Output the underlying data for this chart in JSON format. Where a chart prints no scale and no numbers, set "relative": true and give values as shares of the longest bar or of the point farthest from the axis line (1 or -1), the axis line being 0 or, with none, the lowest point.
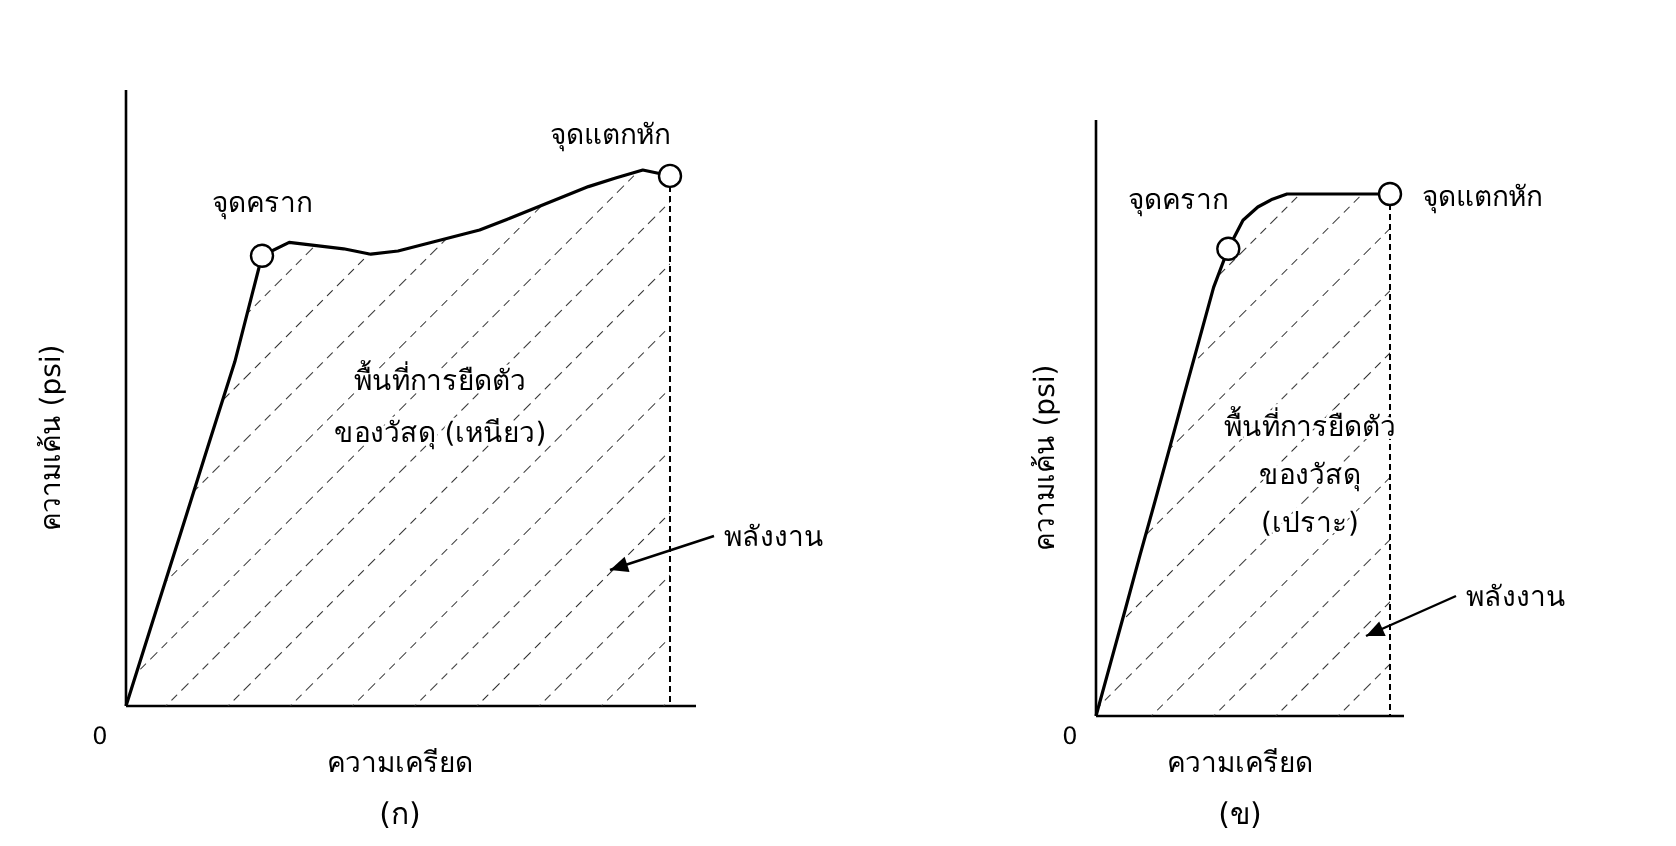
{
  "chart_data": [
    {
      "type": "area",
      "title": "(ก)",
      "xlabel": "ความเครียด",
      "ylabel": "ความเค้น (psi)",
      "relative": true,
      "marker": "none",
      "categories": [
        null,
        null,
        null,
        null,
        null,
        null,
        null,
        null,
        null,
        null,
        null,
        null,
        null,
        null,
        null,
        null,
        null,
        null,
        null,
        null,
        null
      ],
      "series": [
        {
          "color": "#000000",
          "values": [
            0,
            0.161,
            0.321,
            0.482,
            0.642,
            0.84,
            0.865,
            0.859,
            0.853,
            0.843,
            0.849,
            0.862,
            0.875,
            0.888,
            0.908,
            0.928,
            0.949,
            0.969,
            0.985,
            1,
            0.989
          ]
        }
      ],
      "annotations": [
        "จุดคราก",
        "จุดแตกหัก",
        "0",
        "พื้นที่การยืดตัว\nของวัสดุ (เหนียว)",
        "พลังงาน"
      ]
    },
    {
      "type": "area",
      "title": "(ข)",
      "xlabel": "ความเครียด",
      "ylabel": "ความเค้น (psi)",
      "relative": true,
      "marker": "none",
      "categories": [
        null,
        null,
        null,
        null,
        null,
        null,
        null,
        null,
        null,
        null,
        null,
        null,
        null,
        null,
        null,
        null,
        null,
        null,
        null,
        null,
        null
      ],
      "series": [
        {
          "color": "#000000",
          "values": [
            0,
            0.103,
            0.205,
            0.308,
            0.41,
            0.513,
            0.616,
            0.719,
            0.821,
            0.895,
            0.95,
            0.975,
            0.99,
            1,
            1,
            1,
            1,
            1,
            1,
            1,
            1
          ]
        }
      ],
      "annotations": [
        "จุดคราก",
        "จุดแตกหัก",
        "0",
        "พื้นที่การยืดตัว\nของวัสดุ\n(เปราะ)",
        "พลังงาน"
      ]
    }
  ]
}
